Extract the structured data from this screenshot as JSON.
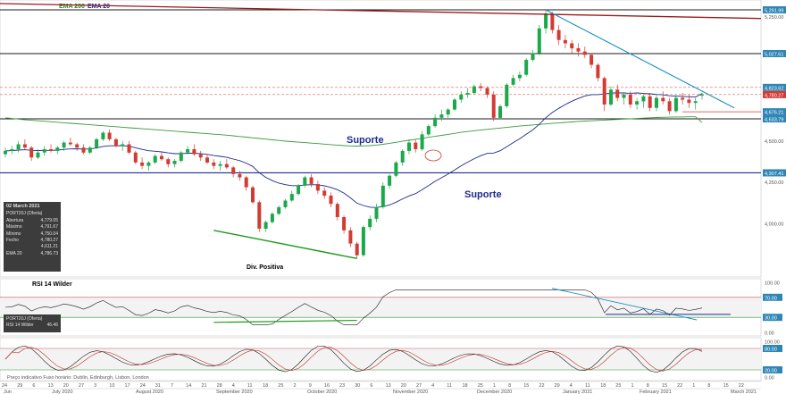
{
  "legend": {
    "ema200": "EMA 200",
    "ema20": "EMA 20"
  },
  "colors": {
    "up": "#1aa84a",
    "down": "#d23b32",
    "ema20": "#1e2a8c",
    "ema200": "#3a9a3a",
    "trend_blue": "#1b8fbf",
    "trend_red": "#9b1b1b",
    "hline": "#1a1a1a",
    "support": "#1e2a8c",
    "red_dash": "#e0604f",
    "label_bg": "#2f86b6",
    "rsi_line": "#1a1a1a",
    "green_div": "#1a9a1a",
    "stoch_k": "#1a1a1a",
    "stoch_d": "#c03030"
  },
  "annotations": {
    "suporte_upper": "Suporte",
    "suporte_lower": "Suporte",
    "div_positiva": "Div. Positiva"
  },
  "price_labels": [
    "5,291.99",
    "5,027.61",
    "4,823.62",
    "4,780.27",
    "4,676.21",
    "4,633.79",
    "4,307.41"
  ],
  "price_ticks": [
    "5,250.00",
    "4,500.00",
    "4,250.00",
    "4,000.00"
  ],
  "info": {
    "date": "02 March 2021",
    "instrument": "PORT20J (Oferta)",
    "rows": [
      {
        "k": "Abertura",
        "v": "4,779.05"
      },
      {
        "k": "Máximo",
        "v": "4,791.67"
      },
      {
        "k": "Mínimo",
        "v": "4,750.04"
      },
      {
        "k": "Fecho",
        "v": "4,780.27"
      },
      {
        "k": "",
        "v": "4,611.21"
      },
      {
        "k": "EMA 20",
        "v": "4,786.73"
      }
    ]
  },
  "rsi": {
    "title": "RSI 14 Wilder",
    "instrument": "PORT20J (Oferta)",
    "label": "RSI 14 Wilder",
    "value": "46.46",
    "axis": [
      "100.00",
      "70.00",
      "30.00",
      "0.00"
    ]
  },
  "stoch": {
    "axis": [
      "100.00",
      "80.00",
      "20.00",
      "0.00"
    ]
  },
  "footer": "Preço indicativo   Fuso horário: Dublin, Edinburgh, Lisbon, London",
  "x_axis": {
    "days": [
      "24",
      "29",
      "6",
      "13",
      "20",
      "27",
      "3",
      "10",
      "17",
      "24",
      "31",
      "7",
      "14",
      "21",
      "28",
      "4",
      "11",
      "18",
      "25",
      "2",
      "9",
      "16",
      "23",
      "30",
      "6",
      "13",
      "20",
      "27",
      "4",
      "11",
      "18",
      "25",
      "1",
      "8",
      "15",
      "22",
      "29",
      "4",
      "11",
      "18",
      "25",
      "1",
      "8",
      "15",
      "22",
      "1",
      "8",
      "15",
      "22"
    ],
    "months": [
      "Jun",
      "July 2020",
      "August 2020",
      "September 2020",
      "October 2020",
      "November 2020",
      "December 2020",
      "January 2021",
      "February 2021",
      "March 2021"
    ]
  },
  "chart_data": {
    "type": "candlestick",
    "price_ylim": [
      3700,
      5330
    ],
    "candles": [
      [
        4420,
        4460,
        4400,
        4440
      ],
      [
        4440,
        4470,
        4420,
        4450
      ],
      [
        4450,
        4500,
        4430,
        4480
      ],
      [
        4480,
        4510,
        4450,
        4460
      ],
      [
        4460,
        4470,
        4380,
        4400
      ],
      [
        4400,
        4450,
        4390,
        4430
      ],
      [
        4430,
        4470,
        4410,
        4450
      ],
      [
        4450,
        4480,
        4430,
        4440
      ],
      [
        4440,
        4470,
        4420,
        4460
      ],
      [
        4460,
        4500,
        4440,
        4490
      ],
      [
        4490,
        4520,
        4470,
        4480
      ],
      [
        4480,
        4490,
        4440,
        4460
      ],
      [
        4460,
        4480,
        4420,
        4430
      ],
      [
        4430,
        4470,
        4420,
        4460
      ],
      [
        4460,
        4520,
        4450,
        4510
      ],
      [
        4510,
        4560,
        4500,
        4550
      ],
      [
        4550,
        4570,
        4500,
        4510
      ],
      [
        4510,
        4520,
        4460,
        4470
      ],
      [
        4470,
        4500,
        4440,
        4480
      ],
      [
        4480,
        4500,
        4420,
        4430
      ],
      [
        4430,
        4440,
        4360,
        4370
      ],
      [
        4370,
        4400,
        4330,
        4350
      ],
      [
        4350,
        4380,
        4320,
        4370
      ],
      [
        4370,
        4420,
        4360,
        4410
      ],
      [
        4410,
        4430,
        4380,
        4390
      ],
      [
        4390,
        4400,
        4340,
        4360
      ],
      [
        4360,
        4390,
        4340,
        4380
      ],
      [
        4380,
        4440,
        4370,
        4430
      ],
      [
        4430,
        4470,
        4420,
        4450
      ],
      [
        4450,
        4480,
        4410,
        4420
      ],
      [
        4420,
        4440,
        4380,
        4400
      ],
      [
        4400,
        4420,
        4360,
        4370
      ],
      [
        4370,
        4390,
        4330,
        4350
      ],
      [
        4350,
        4380,
        4320,
        4360
      ],
      [
        4360,
        4390,
        4330,
        4340
      ],
      [
        4340,
        4350,
        4280,
        4300
      ],
      [
        4300,
        4320,
        4260,
        4280
      ],
      [
        4280,
        4290,
        4200,
        4220
      ],
      [
        4220,
        4230,
        4120,
        4130
      ],
      [
        4130,
        4140,
        3950,
        3970
      ],
      [
        3970,
        4020,
        3950,
        4010
      ],
      [
        4010,
        4070,
        4000,
        4060
      ],
      [
        4060,
        4110,
        4050,
        4100
      ],
      [
        4100,
        4150,
        4090,
        4140
      ],
      [
        4140,
        4200,
        4130,
        4180
      ],
      [
        4180,
        4240,
        4170,
        4230
      ],
      [
        4230,
        4290,
        4220,
        4280
      ],
      [
        4280,
        4300,
        4220,
        4240
      ],
      [
        4240,
        4260,
        4180,
        4200
      ],
      [
        4200,
        4220,
        4150,
        4170
      ],
      [
        4170,
        4190,
        4100,
        4120
      ],
      [
        4120,
        4130,
        4020,
        4040
      ],
      [
        4040,
        4050,
        3940,
        3960
      ],
      [
        3960,
        3980,
        3860,
        3880
      ],
      [
        3880,
        3890,
        3790,
        3810
      ],
      [
        3810,
        3990,
        3800,
        3980
      ],
      [
        3980,
        4050,
        3960,
        4030
      ],
      [
        4030,
        4120,
        4010,
        4100
      ],
      [
        4100,
        4250,
        4090,
        4230
      ],
      [
        4230,
        4300,
        4210,
        4290
      ],
      [
        4290,
        4380,
        4280,
        4370
      ],
      [
        4370,
        4450,
        4350,
        4440
      ],
      [
        4440,
        4510,
        4420,
        4490
      ],
      [
        4490,
        4510,
        4430,
        4450
      ],
      [
        4450,
        4560,
        4440,
        4540
      ],
      [
        4540,
        4600,
        4530,
        4590
      ],
      [
        4590,
        4660,
        4580,
        4640
      ],
      [
        4640,
        4690,
        4620,
        4660
      ],
      [
        4660,
        4700,
        4640,
        4690
      ],
      [
        4690,
        4760,
        4680,
        4750
      ],
      [
        4750,
        4800,
        4730,
        4780
      ],
      [
        4780,
        4820,
        4760,
        4790
      ],
      [
        4790,
        4840,
        4780,
        4830
      ],
      [
        4830,
        4850,
        4800,
        4820
      ],
      [
        4820,
        4830,
        4760,
        4780
      ],
      [
        4780,
        4800,
        4620,
        4640
      ],
      [
        4640,
        4720,
        4630,
        4710
      ],
      [
        4710,
        4850,
        4700,
        4840
      ],
      [
        4840,
        4900,
        4830,
        4880
      ],
      [
        4880,
        4920,
        4860,
        4900
      ],
      [
        4900,
        5000,
        4890,
        4990
      ],
      [
        4990,
        5050,
        4980,
        5030
      ],
      [
        5030,
        5200,
        5020,
        5180
      ],
      [
        5180,
        5291,
        5150,
        5270
      ],
      [
        5270,
        5280,
        5150,
        5170
      ],
      [
        5170,
        5200,
        5080,
        5110
      ],
      [
        5110,
        5140,
        5060,
        5090
      ],
      [
        5090,
        5110,
        5030,
        5060
      ],
      [
        5060,
        5090,
        5010,
        5040
      ],
      [
        5040,
        5070,
        5000,
        5020
      ],
      [
        5020,
        5030,
        4940,
        4960
      ],
      [
        4960,
        4970,
        4860,
        4880
      ],
      [
        4880,
        4890,
        4680,
        4720
      ],
      [
        4720,
        4830,
        4710,
        4810
      ],
      [
        4810,
        4840,
        4740,
        4760
      ],
      [
        4760,
        4790,
        4720,
        4780
      ],
      [
        4780,
        4800,
        4700,
        4720
      ],
      [
        4720,
        4760,
        4690,
        4740
      ],
      [
        4740,
        4780,
        4700,
        4770
      ],
      [
        4770,
        4790,
        4680,
        4700
      ],
      [
        4700,
        4780,
        4680,
        4760
      ],
      [
        4760,
        4800,
        4720,
        4740
      ],
      [
        4740,
        4760,
        4660,
        4680
      ],
      [
        4680,
        4770,
        4670,
        4760
      ],
      [
        4760,
        4790,
        4720,
        4750
      ],
      [
        4750,
        4780,
        4700,
        4730
      ],
      [
        4730,
        4760,
        4690,
        4740
      ],
      [
        4779,
        4792,
        4750,
        4780
      ]
    ],
    "ema20": [
      4440,
      4442,
      4445,
      4447,
      4443,
      4442,
      4443,
      4443,
      4445,
      4449,
      4452,
      4453,
      4451,
      4452,
      4458,
      4467,
      4471,
      4471,
      4472,
      4468,
      4459,
      4449,
      4441,
      4438,
      4434,
      4428,
      4423,
      4424,
      4426,
      4426,
      4424,
      4419,
      4412,
      4407,
      4401,
      4391,
      4381,
      4366,
      4346,
      4308,
      4280,
      4260,
      4245,
      4236,
      4230,
      4230,
      4234,
      4236,
      4235,
      4229,
      4219,
      4206,
      4185,
      4156,
      4124,
      4110,
      4100,
      4098,
      4104,
      4113,
      4130,
      4150,
      4168,
      4182,
      4205,
      4230,
      4256,
      4278,
      4300,
      4325,
      4350,
      4372,
      4393,
      4411,
      4425,
      4427,
      4441,
      4465,
      4490,
      4514,
      4541,
      4567,
      4601,
      4640,
      4672,
      4697,
      4720,
      4740,
      4757,
      4772,
      4780,
      4780,
      4784,
      4791,
      4790,
      4790,
      4788,
      4790,
      4787,
      4785,
      4781,
      4779,
      4773,
      4771,
      4769,
      4767,
      4765,
      4787
    ],
    "ema200": [
      4640,
      4636,
      4632,
      4628,
      4625,
      4622,
      4619,
      4616,
      4613,
      4610,
      4607,
      4604,
      4601,
      4598,
      4595,
      4592,
      4589,
      4586,
      4583,
      4580,
      4577,
      4574,
      4571,
      4568,
      4565,
      4562,
      4559,
      4556,
      4553,
      4550,
      4547,
      4544,
      4541,
      4538,
      4535,
      4531,
      4527,
      4523,
      4519,
      4515,
      4511,
      4507,
      4503,
      4499,
      4496,
      4493,
      4490,
      4487,
      4484,
      4481,
      4478,
      4475,
      4472,
      4470,
      4469,
      4470,
      4472,
      4475,
      4480,
      4486,
      4492,
      4498,
      4504,
      4510,
      4516,
      4522,
      4528,
      4534,
      4540,
      4546,
      4552,
      4557,
      4562,
      4566,
      4570,
      4574,
      4578,
      4582,
      4586,
      4590,
      4594,
      4597,
      4600,
      4603,
      4606,
      4609,
      4612,
      4615,
      4618,
      4620,
      4622,
      4624,
      4626,
      4628,
      4630,
      4632,
      4634,
      4636,
      4638,
      4640,
      4642,
      4643,
      4644,
      4645,
      4645,
      4646,
      4646,
      4611
    ],
    "horizontal_levels": [
      5291.99,
      5027.61,
      4633.79,
      4307.41
    ],
    "rsi_ylim": [
      0,
      100
    ],
    "rsi_levels": [
      70,
      30
    ],
    "rsi_last": 46.46,
    "stoch_ylim": [
      0,
      100
    ],
    "stoch_levels": [
      80,
      20
    ]
  }
}
